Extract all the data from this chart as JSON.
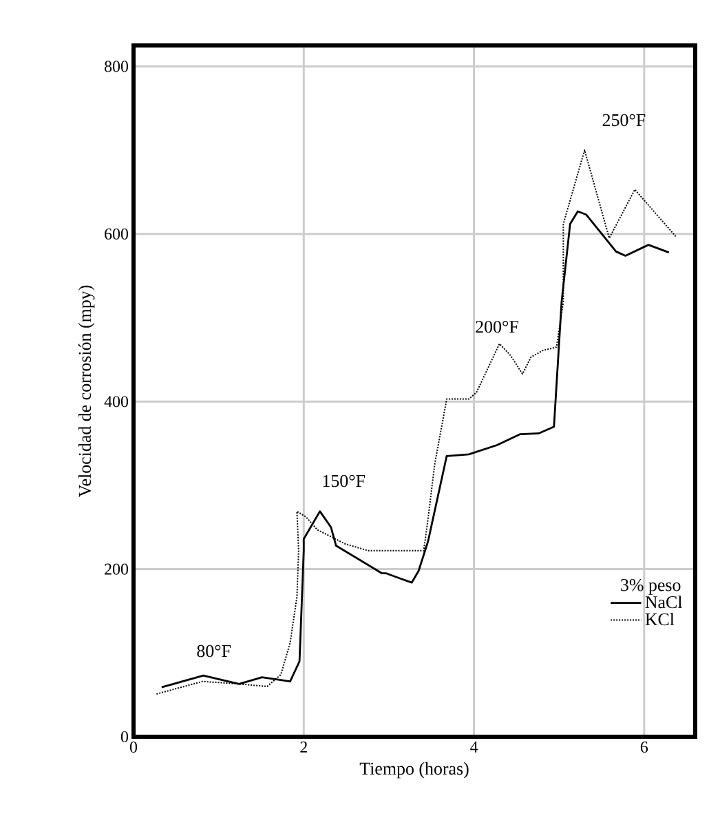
{
  "chart_data": {
    "type": "line",
    "xlabel": "Tiempo (horas)",
    "ylabel": "Velocidad de corrosión (mpy)",
    "xlim": [
      0,
      6.6
    ],
    "ylim": [
      0,
      825
    ],
    "xticks": [
      0,
      2,
      4,
      6
    ],
    "yticks": [
      0,
      200,
      400,
      600,
      800
    ],
    "grid": true,
    "legend": "bottom right",
    "legend_title": "3% peso",
    "series": [
      {
        "name": "NaCl",
        "color": "#000000",
        "line_style": "solid",
        "x": [
          0.33,
          0.82,
          1.24,
          1.51,
          1.84,
          1.95,
          2.0,
          2.0,
          2.19,
          2.32,
          2.38,
          2.92,
          2.97,
          3.13,
          3.27,
          3.35,
          3.46,
          3.68,
          3.94,
          4.27,
          4.54,
          4.76,
          4.94,
          5.03,
          5.13,
          5.22,
          5.32,
          5.67,
          5.78,
          6.05,
          6.29
        ],
        "values": [
          59,
          73,
          63,
          71,
          66,
          90,
          222,
          236,
          269,
          250,
          228,
          195,
          195,
          189,
          184,
          198,
          233,
          335,
          337,
          348,
          361,
          362,
          370,
          519,
          612,
          627,
          623,
          579,
          574,
          587,
          578
        ]
      },
      {
        "name": "KCl",
        "color": "#000000",
        "line_style": "dotted",
        "x": [
          0.27,
          0.81,
          1.24,
          1.57,
          1.73,
          1.84,
          1.92,
          1.94,
          1.92,
          2.03,
          2.16,
          2.49,
          2.76,
          3.41,
          3.46,
          3.54,
          3.68,
          3.94,
          4.03,
          4.3,
          4.43,
          4.57,
          4.67,
          4.81,
          4.97,
          5.05,
          5.05,
          5.3,
          5.59,
          5.89,
          6.38
        ],
        "values": [
          51,
          66,
          63,
          60,
          74,
          112,
          167,
          222,
          269,
          262,
          247,
          230,
          222,
          222,
          260,
          326,
          403,
          403,
          411,
          469,
          455,
          433,
          453,
          461,
          465,
          519,
          612,
          700,
          595,
          653,
          596
        ]
      }
    ],
    "annotations": [
      "80°F",
      "150°F",
      "200°F",
      "250°F"
    ]
  }
}
